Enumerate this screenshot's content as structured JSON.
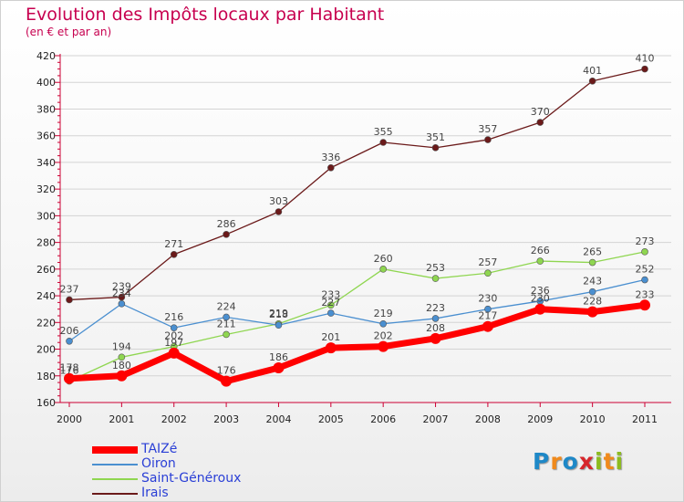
{
  "header": {
    "title": "Evolution des Impôts locaux par Habitant",
    "subtitle": "(en € et par an)"
  },
  "logo": {
    "text": "Proxiti",
    "letters": [
      {
        "ch": "P",
        "color": "#1e88c7"
      },
      {
        "ch": "r",
        "color": "#f08a1c"
      },
      {
        "ch": "o",
        "color": "#1e88c7"
      },
      {
        "ch": "x",
        "color": "#d7262b"
      },
      {
        "ch": "i",
        "color": "#8cbb1f"
      },
      {
        "ch": "t",
        "color": "#f08a1c"
      },
      {
        "ch": "i",
        "color": "#8cbb1f"
      }
    ]
  },
  "colors": {
    "axis": "#cc0033",
    "grid": "#d4d4d4"
  },
  "chart_data": {
    "type": "line",
    "title": "Evolution des Impôts locaux par Habitant",
    "subtitle": "(en € et par an)",
    "xlabel": "",
    "ylabel": "",
    "categories": [
      "2000",
      "2001",
      "2002",
      "2003",
      "2004",
      "2005",
      "2006",
      "2007",
      "2008",
      "2009",
      "2010",
      "2011"
    ],
    "ylim": [
      160,
      420
    ],
    "yticks": [
      160,
      180,
      200,
      220,
      240,
      260,
      280,
      300,
      320,
      340,
      360,
      380,
      400,
      420
    ],
    "grid": "horizontal",
    "legend_position": "bottom-left",
    "series": [
      {
        "name": "TAIZé",
        "color": "#ff0000",
        "values": [
          178,
          180,
          197,
          176,
          186,
          201,
          202,
          208,
          217,
          230,
          228,
          233
        ]
      },
      {
        "name": "Oiron",
        "color": "#4a8fd0",
        "values": [
          206,
          234,
          216,
          224,
          218,
          227,
          219,
          223,
          230,
          236,
          243,
          252
        ]
      },
      {
        "name": "Saint-Généroux",
        "color": "#8fd650",
        "values": [
          176,
          194,
          202,
          211,
          219,
          233,
          260,
          253,
          257,
          266,
          265,
          273
        ]
      },
      {
        "name": "Irais",
        "color": "#6b1a1a",
        "values": [
          237,
          239,
          271,
          286,
          303,
          336,
          355,
          351,
          357,
          370,
          401,
          410
        ]
      }
    ]
  }
}
